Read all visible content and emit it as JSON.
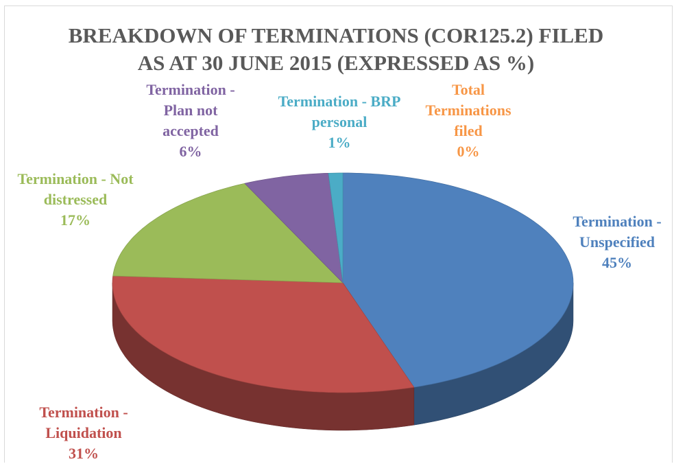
{
  "chart_data": {
    "type": "pie",
    "title": "BREAKDOWN OF TERMINATIONS (COR125.2) FILED AS AT 30 JUNE 2015 (EXPRESSED AS %)",
    "categories": [
      "Termination - Unspecified",
      "Termination - Liquidation",
      "Termination - Not distressed",
      "Termination - Plan not accepted",
      "Termination - BRP personal",
      "Total Terminations filed"
    ],
    "values": [
      45,
      31,
      17,
      6,
      1,
      0
    ],
    "value_labels": [
      "45%",
      "31%",
      "17%",
      "6%",
      "1%",
      "0%"
    ],
    "colors": [
      "#4f81bd",
      "#c0504d",
      "#9bbb59",
      "#8064a2",
      "#4bacc6",
      "#f79646"
    ]
  }
}
